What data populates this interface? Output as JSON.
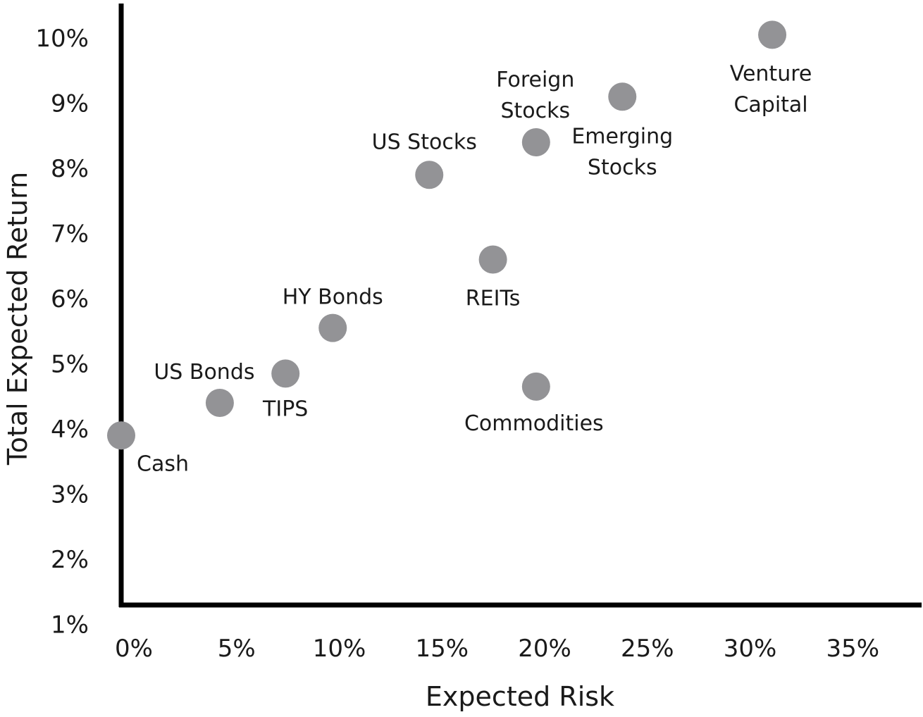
{
  "chart_data": {
    "type": "scatter",
    "title": "",
    "xlabel": "Expected Risk",
    "ylabel": "Total Expected Return",
    "x_ticks": [
      "0%",
      "5%",
      "10%",
      "15%",
      "20%",
      "25%",
      "30%",
      "35%"
    ],
    "y_ticks": [
      "1%",
      "2%",
      "3%",
      "4%",
      "5%",
      "6%",
      "7%",
      "8%",
      "9%",
      "10%"
    ],
    "grid": false,
    "legend": "none",
    "colors": {
      "point": "#939396",
      "axis": "#000000",
      "text": "#1a1a1a"
    },
    "points": [
      {
        "label": [
          "Cash"
        ],
        "x": 0.0,
        "y": 3.9
      },
      {
        "label": [
          "US Bonds"
        ],
        "x": 4.8,
        "y": 4.4
      },
      {
        "label": [
          "TIPS"
        ],
        "x": 8.0,
        "y": 4.85
      },
      {
        "label": [
          "HY Bonds"
        ],
        "x": 10.3,
        "y": 5.55
      },
      {
        "label": [
          "US Stocks"
        ],
        "x": 15.0,
        "y": 7.9
      },
      {
        "label": [
          "REITs"
        ],
        "x": 18.1,
        "y": 6.6
      },
      {
        "label": [
          "Commodities"
        ],
        "x": 20.2,
        "y": 4.65
      },
      {
        "label": [
          "Foreign",
          "Stocks"
        ],
        "x": 20.2,
        "y": 8.4
      },
      {
        "label": [
          "Emerging",
          "Stocks"
        ],
        "x": 24.4,
        "y": 9.1
      },
      {
        "label": [
          "Venture",
          "Capital"
        ],
        "x": 31.7,
        "y": 10.05
      }
    ]
  }
}
